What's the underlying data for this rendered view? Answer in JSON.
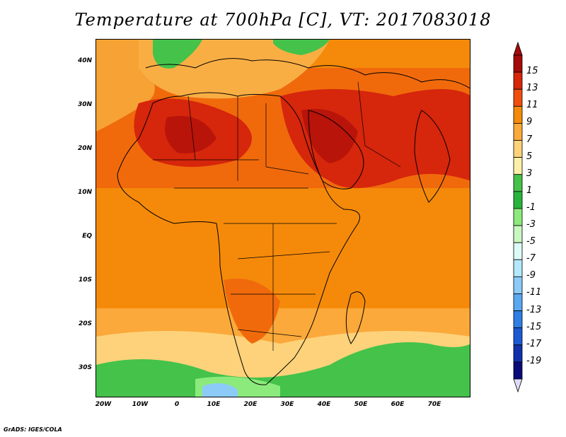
{
  "title": "Temperature at 700hPa [C], VT: 2017083018",
  "footer": "GrADS: IGES/COLA",
  "map": {
    "lon_range": [
      -22,
      80
    ],
    "lat_range": [
      -37,
      45
    ],
    "lat_ticks": [
      "40N",
      "30N",
      "20N",
      "10N",
      "EQ",
      "10S",
      "20S",
      "30S"
    ],
    "lon_ticks": [
      "20W",
      "10W",
      "0",
      "10E",
      "20E",
      "30E",
      "40E",
      "50E",
      "60E",
      "70E"
    ]
  },
  "colorbar": {
    "labels": [
      "15",
      "13",
      "11",
      "9",
      "7",
      "5",
      "3",
      "1",
      "-1",
      "-3",
      "-5",
      "-7",
      "-9",
      "-11",
      "-13",
      "-15",
      "-17",
      "-19"
    ],
    "colors": [
      "#a50a0a",
      "#d6260c",
      "#f04e0c",
      "#f58a0a",
      "#fba93a",
      "#fdd27a",
      "#fcf0a8",
      "#44c24a",
      "#28b43c",
      "#8cea7c",
      "#c8f8c0",
      "#dcfaf6",
      "#b4e8fb",
      "#8ccaf8",
      "#5aa8f2",
      "#2e7ee4",
      "#1c5ad2",
      "#1230aa",
      "#0a0a78"
    ]
  }
}
